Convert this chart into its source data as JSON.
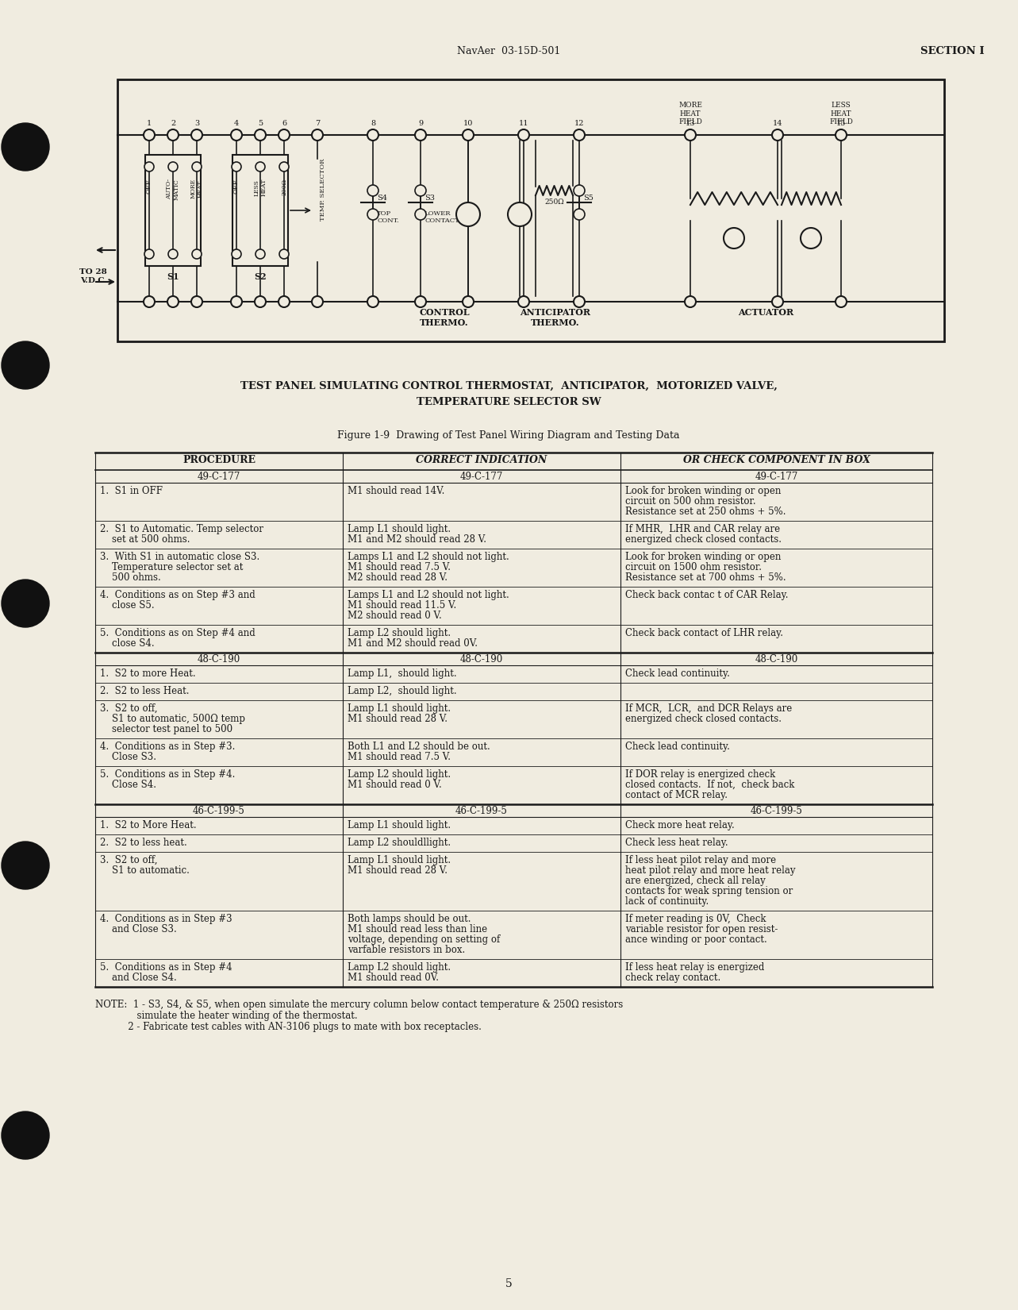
{
  "bg_color": "#f0ece0",
  "text_color": "#1a1a1a",
  "header_left": "NavAer  03-15D-501",
  "header_right": "SECTION I",
  "page_number": "5",
  "diagram_title1": "TEST PANEL SIMULATING CONTROL THERMOSTAT,  ANTICIPATOR,  MOTORIZED VALVE,",
  "diagram_title2": "TEMPERATURE SELECTOR SW",
  "figure_caption": "Figure 1-9  Drawing of Test Panel Wiring Diagram and Testing Data",
  "table_headers": [
    "PROCEDURE",
    "CORRECT INDICATION",
    "OR CHECK COMPONENT IN BOX"
  ],
  "sections": [
    {
      "section_id": "49-C-177",
      "rows": [
        {
          "proc": "1.  S1 in OFF",
          "correct": "M1 should read 14V.",
          "check": "Look for broken winding or open\ncircuit on 500 ohm resistor.\nResistance set at 250 ohms + 5%."
        },
        {
          "proc": "2.  S1 to Automatic. Temp selector\n    set at 500 ohms.",
          "correct": "Lamp L1 should light.\nM1 and M2 should read 28 V.",
          "check": "If MHR,  LHR and CAR relay are\nenergized check closed contacts."
        },
        {
          "proc": "3.  With S1 in automatic close S3.\n    Temperature selector set at\n    500 ohms.",
          "correct": "Lamps L1 and L2 should not light.\nM1 should read 7.5 V.\nM2 should read 28 V.",
          "check": "Look for broken winding or open\ncircuit on 1500 ohm resistor.\nResistance set at 700 ohms + 5%."
        },
        {
          "proc": "4.  Conditions as on Step #3 and\n    close S5.",
          "correct": "Lamps L1 and L2 should not light.\nM1 should read 11.5 V.\nM2 should read 0 V.",
          "check": "Check back contac t of CAR Relay."
        },
        {
          "proc": "5.  Conditions as on Step #4 and\n    close S4.",
          "correct": "Lamp L2 should light.\nM1 and M2 should read 0V.",
          "check": "Check back contact of LHR relay."
        }
      ]
    },
    {
      "section_id": "48-C-190",
      "rows": [
        {
          "proc": "1.  S2 to more Heat.",
          "correct": "Lamp L1,  should light.",
          "check": "Check lead continuity."
        },
        {
          "proc": "2.  S2 to less Heat.",
          "correct": "Lamp L2,  should light.",
          "check": ""
        },
        {
          "proc": "3.  S2 to off,\n    S1 to automatic, 500Ω temp\n    selector test panel to 500",
          "correct": "Lamp L1 should light.\nM1 should read 28 V.",
          "check": "If MCR,  LCR,  and DCR Relays are\nenergized check closed contacts."
        },
        {
          "proc": "4.  Conditions as in Step #3.\n    Close S3.",
          "correct": "Both L1 and L2 should be out.\nM1 should read 7.5 V.",
          "check": "Check lead continuity."
        },
        {
          "proc": "5.  Conditions as in Step #4.\n    Close S4.",
          "correct": "Lamp L2 should light.\nM1 should read 0 V.",
          "check": "If DOR relay is energized check\nclosed contacts.  If not,  check back\ncontact of MCR relay."
        }
      ]
    },
    {
      "section_id": "46-C-199-5",
      "rows": [
        {
          "proc": "1.  S2 to More Heat.",
          "correct": "Lamp L1 should light.",
          "check": "Check more heat relay."
        },
        {
          "proc": "2.  S2 to less heat.",
          "correct": "Lamp L2 shouldllight.",
          "check": "Check less heat relay."
        },
        {
          "proc": "3.  S2 to off,\n    S1 to automatic.",
          "correct": "Lamp L1 should light.\nM1 should read 28 V.",
          "check": "If less heat pilot relay and more\nheat pilot relay and more heat relay\nare energized, check all relay\ncontacts for weak spring tension or\nlack of continuity."
        },
        {
          "proc": "4.  Conditions as in Step #3\n    and Close S3.",
          "correct": "Both lamps should be out.\nM1 should read less than line\nvoltage, depending on setting of\nvarfable resistors in box.",
          "check": "If meter reading is 0V,  Check\nvariable resistor for open resist-\nance winding or poor contact."
        },
        {
          "proc": "5.  Conditions as in Step #4\n    and Close S4.",
          "correct": "Lamp L2 should light.\nM1 should read 0V.",
          "check": "If less heat relay is energized\ncheck relay contact."
        }
      ]
    }
  ],
  "note_line1": "NOTE:  1 - S3, S4, & S5, when open simulate the mercury column below contact temperature & 250Ω resistors",
  "note_line2": "              simulate the heater winding of the thermostat.",
  "note_line3": "           2 - Fabricate test cables with AN-3106 plugs to mate with box receptacles."
}
